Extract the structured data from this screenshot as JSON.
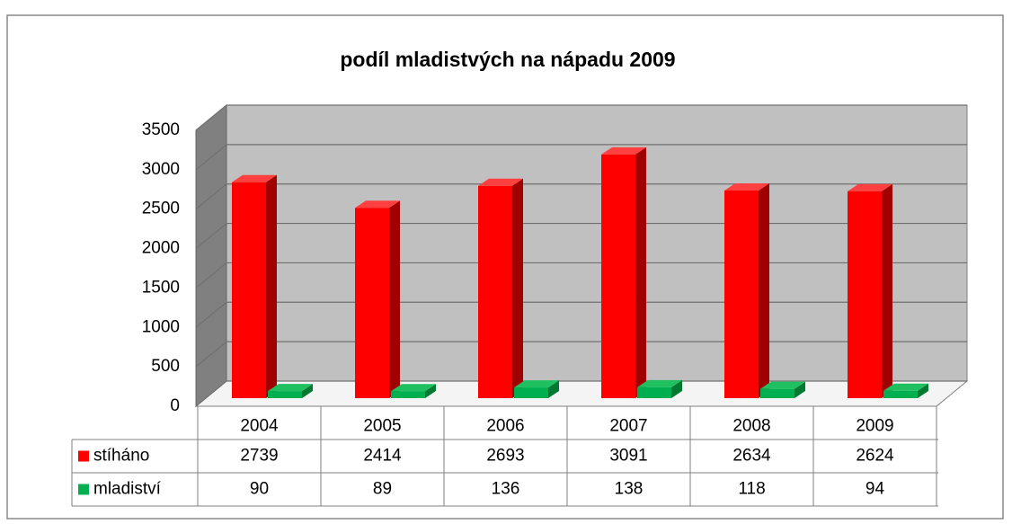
{
  "chart_data": {
    "type": "bar3d",
    "title": "podíl mladistvých na nápadu 2009",
    "categories": [
      "2004",
      "2005",
      "2006",
      "2007",
      "2008",
      "2009"
    ],
    "series": [
      {
        "name": "stíháno",
        "color": "#ff0000",
        "values": [
          2739,
          2414,
          2693,
          3091,
          2634,
          2624
        ]
      },
      {
        "name": "mladiství",
        "color": "#00b050",
        "values": [
          90,
          89,
          136,
          138,
          118,
          94
        ]
      }
    ],
    "ylim": [
      0,
      3500
    ],
    "yticks": [
      0,
      500,
      1000,
      1500,
      2000,
      2500,
      3000,
      3500
    ],
    "grid": true,
    "data_table": true
  }
}
